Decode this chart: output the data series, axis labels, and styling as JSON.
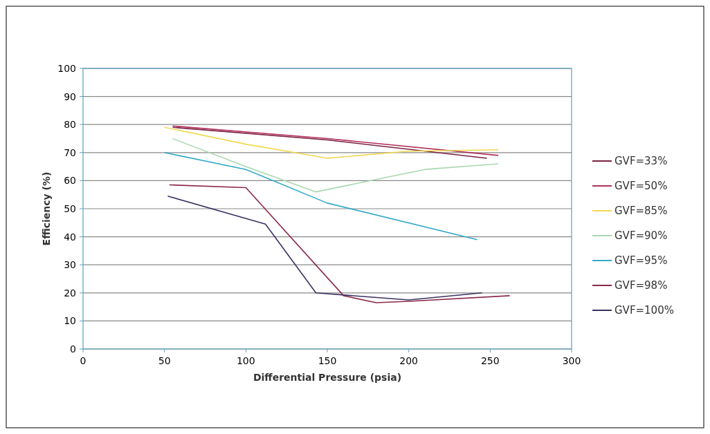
{
  "chart_data": {
    "type": "line",
    "xlabel": "Differential Pressure (psia)",
    "ylabel": "Efficiency (%)",
    "xlim": [
      0,
      300
    ],
    "xticks": [
      0,
      50,
      100,
      150,
      200,
      250,
      300
    ],
    "ylim": [
      0,
      100
    ],
    "yticks": [
      0,
      10,
      20,
      30,
      40,
      50,
      60,
      70,
      80,
      90,
      100
    ],
    "grid": "y",
    "legend": "right",
    "marker": "none",
    "line_style": "solid",
    "series": [
      {
        "name": "GVF=33%",
        "color": "#7a2040",
        "x": [
          55,
          150,
          248
        ],
        "values": [
          79,
          74.5,
          68
        ]
      },
      {
        "name": "GVF=50%",
        "color": "#b0305a",
        "x": [
          55,
          150,
          255
        ],
        "values": [
          79.5,
          75,
          69
        ]
      },
      {
        "name": "GVF=85%",
        "color": "#f0d850",
        "x": [
          50,
          100,
          150,
          200,
          255
        ],
        "values": [
          79,
          73,
          68,
          70.5,
          71
        ]
      },
      {
        "name": "GVF=90%",
        "color": "#a8d8b0",
        "x": [
          55,
          100,
          143,
          210,
          255
        ],
        "values": [
          75,
          65,
          56,
          64,
          66
        ]
      },
      {
        "name": "GVF=95%",
        "color": "#30a8c8",
        "x": [
          50,
          100,
          150,
          242
        ],
        "values": [
          70,
          64,
          52,
          39
        ]
      },
      {
        "name": "GVF=98%",
        "color": "#8a2848",
        "x": [
          53,
          100,
          160,
          180,
          200,
          262
        ],
        "values": [
          58.5,
          57.5,
          19,
          16.5,
          17,
          19
        ]
      },
      {
        "name": "GVF=100%",
        "color": "#3a3060",
        "x": [
          52,
          112,
          143,
          200,
          245
        ],
        "values": [
          54.5,
          44.5,
          20,
          17.5,
          20
        ]
      }
    ]
  }
}
